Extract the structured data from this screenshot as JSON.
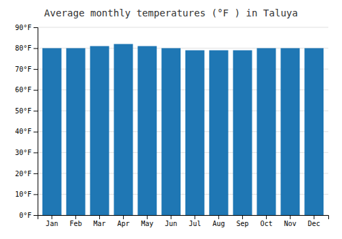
{
  "chart_data": {
    "type": "bar",
    "title": "Average monthly temperatures (°F ) in Taluya",
    "categories": [
      "Jan",
      "Feb",
      "Mar",
      "Apr",
      "May",
      "Jun",
      "Jul",
      "Aug",
      "Sep",
      "Oct",
      "Nov",
      "Dec"
    ],
    "values": [
      80,
      80,
      81,
      82,
      81,
      80,
      79,
      79,
      79,
      80,
      80,
      80
    ],
    "ylim": [
      0,
      90
    ],
    "yticks": [
      {
        "value": 0,
        "label": "0°F"
      },
      {
        "value": 10,
        "label": "10°F"
      },
      {
        "value": 20,
        "label": "20°F"
      },
      {
        "value": 30,
        "label": "30°F"
      },
      {
        "value": 40,
        "label": "40°F"
      },
      {
        "value": 50,
        "label": "50°F"
      },
      {
        "value": 60,
        "label": "60°F"
      },
      {
        "value": 70,
        "label": "70°F"
      },
      {
        "value": 80,
        "label": "80°F"
      },
      {
        "value": 90,
        "label": "90°F"
      }
    ],
    "grid": true
  }
}
